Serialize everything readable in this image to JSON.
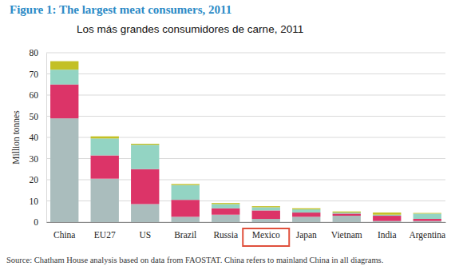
{
  "chart_data": {
    "type": "bar",
    "stacked": true,
    "title": "Figure 1: The largest meat consumers, 2011",
    "subtitle": "Los más grandes consumidores de carne, 2011",
    "ylabel": "Million tonnes",
    "source": "Source: Chatham House analysis based on data from FAOSTAT. China refers to mainland China in all diagrams.",
    "categories": [
      "China",
      "EU27",
      "US",
      "Brazil",
      "Russia",
      "Mexico",
      "Japan",
      "Vietnam",
      "India",
      "Argentina"
    ],
    "series": [
      {
        "color": "#aabdbd",
        "values": [
          49,
          20.5,
          8.5,
          2.5,
          3.5,
          1.5,
          2.5,
          3,
          0.5,
          0.5
        ]
      },
      {
        "color": "#dc3468",
        "values": [
          16,
          11,
          16.5,
          8,
          3,
          4,
          2,
          1,
          2.5,
          1
        ]
      },
      {
        "color": "#93d4c3",
        "values": [
          7,
          8,
          11.5,
          7,
          2,
          1.5,
          1.5,
          0.5,
          0.5,
          2.5
        ]
      },
      {
        "color": "#c3c025",
        "values": [
          4,
          1,
          0.5,
          0.5,
          0.5,
          0.5,
          0.5,
          0.5,
          1,
          0.3
        ]
      }
    ],
    "ylim": [
      0,
      80
    ],
    "yticks": [
      0,
      10,
      20,
      30,
      40,
      50,
      60,
      70,
      80
    ],
    "grid": true
  }
}
